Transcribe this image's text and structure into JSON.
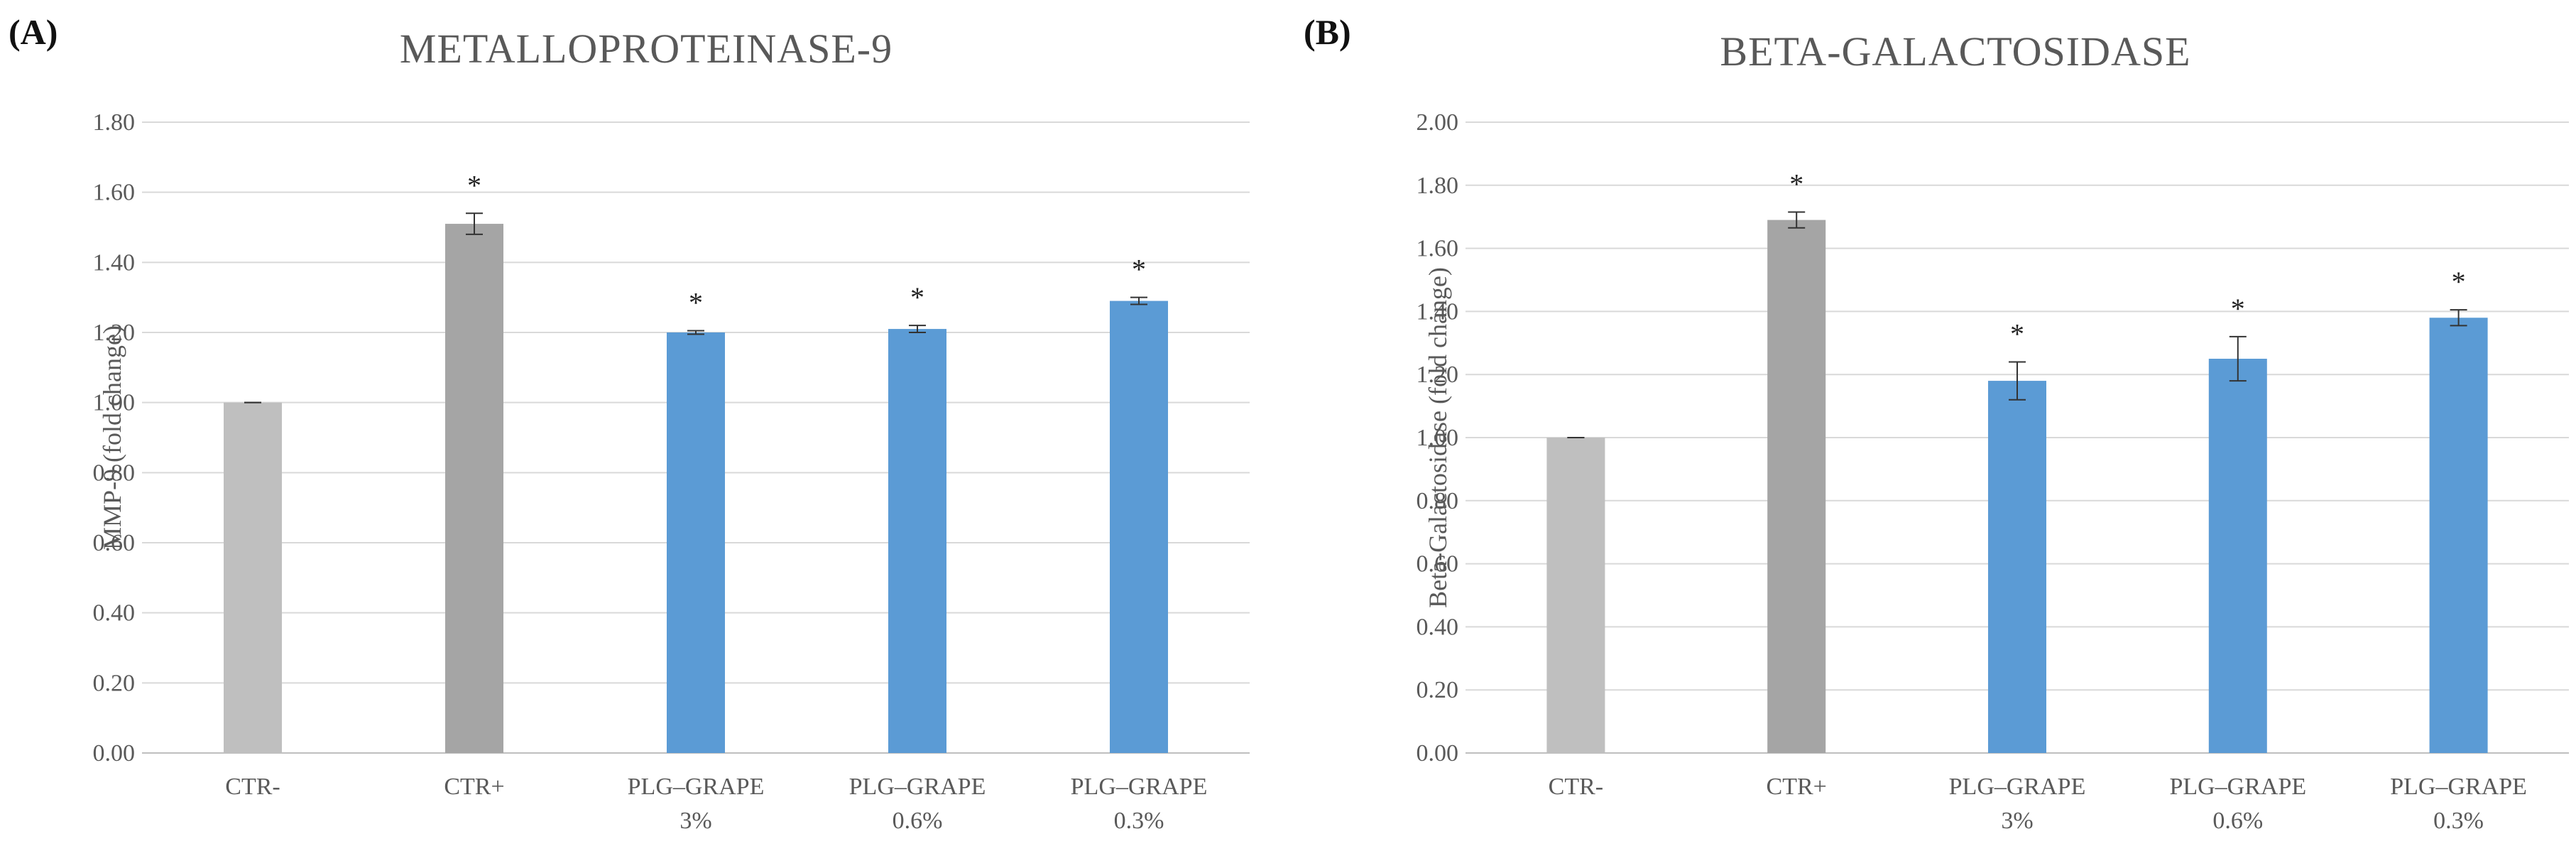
{
  "chart_data": [
    {
      "type": "bar",
      "panel_label": "(A)",
      "title": "METALLOPROTEINASE-9",
      "xlabel": "",
      "ylabel": "MMP-9 (fold change)",
      "ylim": [
        0,
        1.8
      ],
      "ytick_step": 0.2,
      "ytick_labels": [
        "0.00",
        "0.20",
        "0.40",
        "0.60",
        "0.80",
        "1.00",
        "1.20",
        "1.40",
        "1.60",
        "1.80"
      ],
      "grid": true,
      "categories": [
        [
          "CTR-"
        ],
        [
          "CTR+"
        ],
        [
          "PLG–GRAPE",
          "3%"
        ],
        [
          "PLG–GRAPE",
          "0.6%"
        ],
        [
          "PLG–GRAPE",
          "0.3%"
        ]
      ],
      "values": [
        1.0,
        1.51,
        1.2,
        1.21,
        1.29
      ],
      "errors": [
        0.0,
        0.03,
        0.005,
        0.01,
        0.01
      ],
      "significance": [
        "",
        "*",
        "*",
        "*",
        "*"
      ],
      "colors": [
        "#bfbfbf",
        "#a5a5a5",
        "#5b9bd5",
        "#5b9bd5",
        "#5b9bd5"
      ]
    },
    {
      "type": "bar",
      "panel_label": "(B)",
      "title": "BETA-GALACTOSIDASE",
      "xlabel": "",
      "ylabel": "Beta-Galactosidase (fold change)",
      "ylim": [
        0,
        2.0
      ],
      "ytick_step": 0.2,
      "ytick_labels": [
        "0.00",
        "0.20",
        "0.40",
        "0.60",
        "0.80",
        "1.00",
        "1.20",
        "1.40",
        "1.60",
        "1.80",
        "2.00"
      ],
      "grid": true,
      "categories": [
        [
          "CTR-"
        ],
        [
          "CTR+"
        ],
        [
          "PLG–GRAPE",
          "3%"
        ],
        [
          "PLG–GRAPE",
          "0.6%"
        ],
        [
          "PLG–GRAPE",
          "0.3%"
        ]
      ],
      "values": [
        1.0,
        1.69,
        1.18,
        1.25,
        1.38
      ],
      "errors": [
        0.0,
        0.025,
        0.06,
        0.07,
        0.025
      ],
      "significance": [
        "",
        "*",
        "*",
        "*",
        "*"
      ],
      "colors": [
        "#bfbfbf",
        "#a5a5a5",
        "#5b9bd5",
        "#5b9bd5",
        "#5b9bd5"
      ]
    }
  ]
}
